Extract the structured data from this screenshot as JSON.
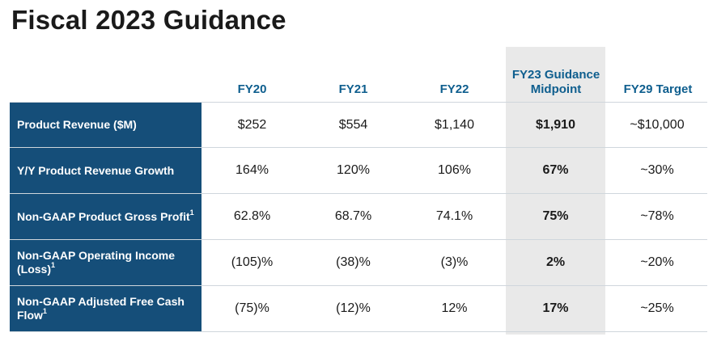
{
  "title": "Fiscal 2023 Guidance",
  "colors": {
    "label_bg": "#154e79",
    "header_text": "#0e5e8e",
    "midpoint_bg": "#e9e9e9"
  },
  "columns": [
    "FY20",
    "FY21",
    "FY22",
    "FY23 Guidance Midpoint",
    "FY29 Target"
  ],
  "rows": [
    {
      "label": "Product Revenue ($M)",
      "footnote": "",
      "values": [
        "$252",
        "$554",
        "$1,140",
        "$1,910",
        "~$10,000"
      ]
    },
    {
      "label": "Y/Y Product Revenue Growth",
      "footnote": "",
      "values": [
        "164%",
        "120%",
        "106%",
        "67%",
        "~30%"
      ]
    },
    {
      "label": "Non-GAAP Product Gross Profit",
      "footnote": "1",
      "values": [
        "62.8%",
        "68.7%",
        "74.1%",
        "75%",
        "~78%"
      ]
    },
    {
      "label": "Non-GAAP Operating Income (Loss)",
      "footnote": "1",
      "values": [
        "(105)%",
        "(38)%",
        "(3)%",
        "2%",
        "~20%"
      ]
    },
    {
      "label": "Non-GAAP Adjusted Free Cash Flow",
      "footnote": "1",
      "values": [
        "(75)%",
        "(12)%",
        "12%",
        "17%",
        "~25%"
      ]
    }
  ]
}
